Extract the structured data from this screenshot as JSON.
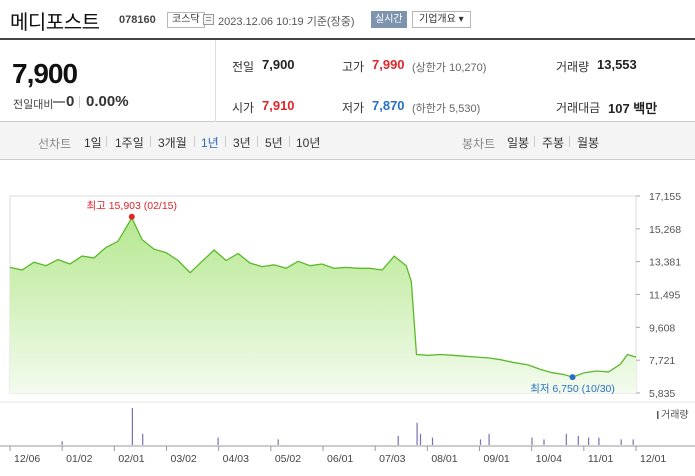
{
  "header": {
    "company_name": "메디포스트",
    "stock_code": "078160",
    "market_badge": "코스닥",
    "datetime": "2023.12.06 10:19 기준(장중)",
    "live_badge": "실시간",
    "info_button": "기업개요 ▾"
  },
  "price": {
    "current": "7,900",
    "change_label": "전일대비",
    "change_value": "0",
    "change_pct": "0.00%"
  },
  "stats": {
    "prev_close_label": "전일",
    "prev_close": "7,900",
    "high_label": "고가",
    "high": "7,990",
    "upper_limit": "(상한가 10,270)",
    "volume_label": "거래량",
    "volume": "13,553",
    "open_label": "시가",
    "open": "7,910",
    "low_label": "저가",
    "low": "7,870",
    "lower_limit": "(하한가 5,530)",
    "amount_label": "거래대금",
    "amount": "107 백만"
  },
  "period_tabs": {
    "label": "선차트",
    "items": [
      "1일",
      "1주일",
      "3개월",
      "1년",
      "3년",
      "5년",
      "10년"
    ],
    "selected": "1년"
  },
  "candle_tabs": {
    "label": "봉차트",
    "items": [
      "일봉",
      "주봉",
      "월봉"
    ]
  },
  "colors": {
    "line": "#5cb82a",
    "area_top": "#b6e890",
    "area_bottom": "#f3fbee",
    "high_marker": "#e0252b",
    "low_marker": "#2870c7",
    "volume": "#7a6fb0"
  },
  "chart_data": {
    "type": "area",
    "title": "",
    "x_tick_labels": [
      "12/06",
      "01/02",
      "02/01",
      "03/02",
      "04/03",
      "05/02",
      "06/01",
      "07/03",
      "08/01",
      "09/01",
      "10/04",
      "11/01",
      "12/01"
    ],
    "y_tick_labels": [
      "17,155",
      "15,268",
      "13,381",
      "11,495",
      "9,608",
      "7,721",
      "5,835"
    ],
    "ylim": [
      5835,
      17155
    ],
    "high_annotation": "최고 15,903 (02/15)",
    "low_annotation": "최저 6,750 (10/30)",
    "volume_label": "거래량",
    "series": [
      {
        "name": "",
        "points": [
          [
            "2022-12-06",
            13050
          ],
          [
            "2022-12-13",
            12900
          ],
          [
            "2022-12-20",
            13350
          ],
          [
            "2022-12-27",
            13150
          ],
          [
            "2023-01-03",
            13500
          ],
          [
            "2023-01-10",
            13250
          ],
          [
            "2023-01-17",
            13700
          ],
          [
            "2023-01-24",
            13600
          ],
          [
            "2023-01-31",
            14200
          ],
          [
            "2023-02-07",
            14550
          ],
          [
            "2023-02-15",
            15903
          ],
          [
            "2023-02-21",
            14650
          ],
          [
            "2023-02-28",
            14100
          ],
          [
            "2023-03-07",
            13900
          ],
          [
            "2023-03-14",
            13450
          ],
          [
            "2023-03-21",
            12750
          ],
          [
            "2023-03-28",
            13400
          ],
          [
            "2023-04-04",
            14050
          ],
          [
            "2023-04-11",
            13450
          ],
          [
            "2023-04-18",
            13850
          ],
          [
            "2023-04-25",
            13300
          ],
          [
            "2023-05-02",
            13100
          ],
          [
            "2023-05-09",
            13200
          ],
          [
            "2023-05-16",
            13000
          ],
          [
            "2023-05-23",
            13400
          ],
          [
            "2023-05-30",
            13150
          ],
          [
            "2023-06-06",
            13250
          ],
          [
            "2023-06-13",
            13000
          ],
          [
            "2023-06-20",
            13050
          ],
          [
            "2023-06-27",
            13000
          ],
          [
            "2023-07-04",
            13000
          ],
          [
            "2023-07-11",
            12900
          ],
          [
            "2023-07-18",
            13700
          ],
          [
            "2023-07-25",
            13150
          ],
          [
            "2023-07-28",
            12250
          ],
          [
            "2023-07-31",
            8050
          ],
          [
            "2023-08-07",
            8000
          ],
          [
            "2023-08-14",
            8050
          ],
          [
            "2023-08-21",
            8000
          ],
          [
            "2023-08-28",
            7950
          ],
          [
            "2023-09-04",
            7900
          ],
          [
            "2023-09-11",
            7850
          ],
          [
            "2023-09-18",
            7750
          ],
          [
            "2023-09-25",
            7600
          ],
          [
            "2023-10-04",
            7450
          ],
          [
            "2023-10-11",
            7200
          ],
          [
            "2023-10-18",
            7000
          ],
          [
            "2023-10-25",
            6900
          ],
          [
            "2023-10-30",
            6750
          ],
          [
            "2023-11-06",
            7000
          ],
          [
            "2023-11-13",
            7100
          ],
          [
            "2023-11-20",
            7050
          ],
          [
            "2023-11-27",
            7500
          ],
          [
            "2023-12-01",
            8050
          ],
          [
            "2023-12-06",
            7900
          ]
        ]
      }
    ],
    "volume_spikes": [
      [
        "2023-01-05",
        1
      ],
      [
        "2023-02-15",
        10
      ],
      [
        "2023-02-21",
        3
      ],
      [
        "2023-04-06",
        2
      ],
      [
        "2023-05-11",
        1.5
      ],
      [
        "2023-07-20",
        2.5
      ],
      [
        "2023-07-31",
        6
      ],
      [
        "2023-08-02",
        3
      ],
      [
        "2023-08-09",
        2
      ],
      [
        "2023-09-06",
        1.5
      ],
      [
        "2023-09-11",
        3
      ],
      [
        "2023-10-06",
        2
      ],
      [
        "2023-10-13",
        1.5
      ],
      [
        "2023-10-26",
        3
      ],
      [
        "2023-11-02",
        2.5
      ],
      [
        "2023-11-08",
        2
      ],
      [
        "2023-11-14",
        2
      ],
      [
        "2023-11-27",
        1.5
      ],
      [
        "2023-12-04",
        1.5
      ]
    ]
  }
}
